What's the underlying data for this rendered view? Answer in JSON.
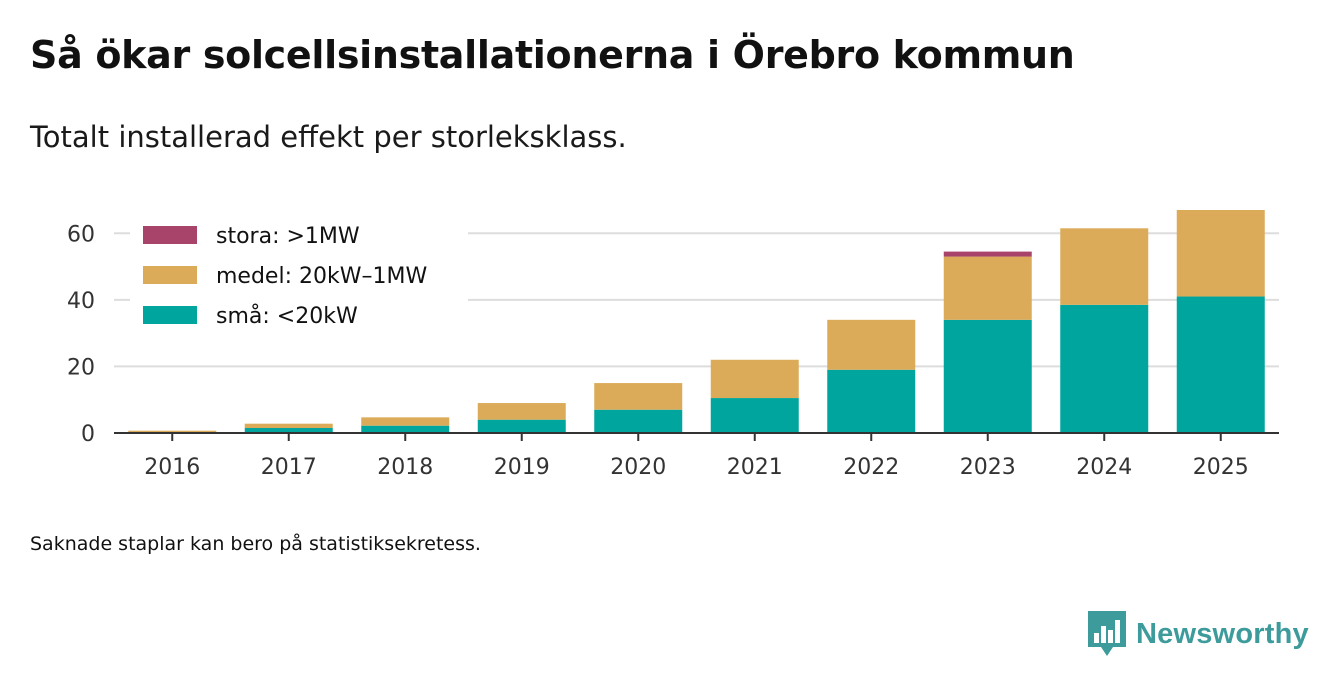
{
  "title": "Så ökar solcellsinstallationerna i Örebro kommun",
  "subtitle": "Totalt installerad effekt per storleksklass.",
  "footnote": "Saknade staplar kan bero på statistiksekretess.",
  "brand": {
    "name": "Newsworthy",
    "icon": "newsworthy-logo-icon"
  },
  "colors": {
    "stora": "#a8436a",
    "medel": "#dbab5a",
    "sma": "#00a69d",
    "grid": "#dddddd",
    "axis": "#333333"
  },
  "chart_data": {
    "type": "bar",
    "stacked": true,
    "title": "Så ökar solcellsinstallationerna i Örebro kommun",
    "subtitle": "Totalt installerad effekt per storleksklass.",
    "xlabel": "",
    "ylabel": "",
    "ylim": [
      0,
      70
    ],
    "yticks": [
      0,
      20,
      40,
      60
    ],
    "grid": true,
    "legend_position": "top-left",
    "categories": [
      "2016",
      "2017",
      "2018",
      "2019",
      "2020",
      "2021",
      "2022",
      "2023",
      "2024",
      "2025"
    ],
    "series": [
      {
        "name": "små: <20kW",
        "key": "sma",
        "values": [
          0.3,
          1.5,
          2.2,
          4,
          7,
          10.5,
          19,
          34,
          38.5,
          41
        ]
      },
      {
        "name": "medel: 20kW–1MW",
        "key": "medel",
        "values": [
          0.4,
          1.3,
          2.5,
          5,
          8,
          11.5,
          15,
          19,
          23,
          26
        ]
      },
      {
        "name": "stora: >1MW",
        "key": "stora",
        "values": [
          null,
          null,
          null,
          null,
          null,
          null,
          null,
          1.5,
          null,
          null
        ]
      }
    ],
    "legend_order": [
      "stora",
      "medel",
      "sma"
    ]
  }
}
